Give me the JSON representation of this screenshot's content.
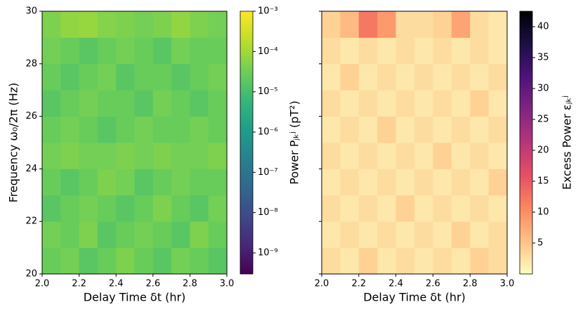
{
  "chart_data": [
    {
      "type": "heatmap",
      "xlabel": "Delay Time δt (hr)",
      "ylabel": "Frequency ω₀/2π (Hz)",
      "colorbar_label": "Power Pⱼₖʲ (pT²)",
      "colormap": "viridis",
      "color_scale": "log",
      "xbins": [
        2.0,
        2.1,
        2.2,
        2.3,
        2.4,
        2.5,
        2.6,
        2.7,
        2.8,
        2.9,
        3.0
      ],
      "ybins": [
        20,
        21,
        22,
        23,
        24,
        25,
        26,
        27,
        28,
        29,
        30
      ],
      "values": [
        [
          3e-05,
          4e-05,
          2e-05,
          3e-05,
          5e-05,
          3e-05,
          2e-05,
          4e-05,
          3e-05,
          2e-05
        ],
        [
          4e-05,
          3e-05,
          5e-05,
          2e-05,
          3e-05,
          4e-05,
          3e-05,
          2e-05,
          5e-05,
          3e-05
        ],
        [
          2e-05,
          3e-05,
          4e-05,
          3e-05,
          2e-05,
          3e-05,
          5e-05,
          3e-05,
          2e-05,
          4e-05
        ],
        [
          3e-05,
          2e-05,
          3e-05,
          5e-05,
          4e-05,
          2e-05,
          3e-05,
          4e-05,
          3e-05,
          3e-05
        ],
        [
          4e-05,
          5e-05,
          4e-05,
          4e-05,
          5e-05,
          4e-05,
          5e-05,
          4e-05,
          4e-05,
          5e-05
        ],
        [
          3e-05,
          4e-05,
          3e-05,
          2e-05,
          3e-05,
          4e-05,
          3e-05,
          3e-05,
          4e-05,
          3e-05
        ],
        [
          2e-05,
          3e-05,
          4e-05,
          3e-05,
          3e-05,
          2e-05,
          4e-05,
          3e-05,
          2e-05,
          3e-05
        ],
        [
          3e-05,
          2e-05,
          3e-05,
          4e-05,
          2e-05,
          3e-05,
          3e-05,
          2e-05,
          3e-05,
          4e-05
        ],
        [
          4e-05,
          3e-05,
          2e-05,
          3e-05,
          4e-05,
          3e-05,
          2e-05,
          4e-05,
          3e-05,
          3e-05
        ],
        [
          5e-05,
          8e-05,
          9e-05,
          6e-05,
          5e-05,
          4e-05,
          5e-05,
          8e-05,
          5e-05,
          4e-05
        ]
      ],
      "xlim": [
        2.0,
        3.0
      ],
      "xticks": [
        {
          "value": 2.0,
          "label": "2.0"
        },
        2.2,
        2.4,
        2.6,
        2.8,
        {
          "value": 3.0,
          "label": "3.0"
        }
      ],
      "ylim": [
        20,
        30
      ],
      "yticks": [
        20,
        22,
        24,
        26,
        28,
        30
      ],
      "yticklabels": true,
      "clim": [
        3e-10,
        0.001
      ],
      "cticks": [
        {
          "value": 1e-09,
          "label": "10⁻⁹"
        },
        {
          "value": 1e-08,
          "label": "10⁻⁸"
        },
        {
          "value": 1e-07,
          "label": "10⁻⁷"
        },
        {
          "value": 1e-06,
          "label": "10⁻⁶"
        },
        {
          "value": 1e-05,
          "label": "10⁻⁵"
        },
        {
          "value": 0.0001,
          "label": "10⁻⁴"
        },
        {
          "value": 0.001,
          "label": "10⁻³"
        }
      ]
    },
    {
      "type": "heatmap",
      "xlabel": "Delay Time δt (hr)",
      "colorbar_label": "Excess Power εⱼₖʲ",
      "colormap": "magma_r",
      "color_scale": "linear",
      "xbins": [
        2.0,
        2.1,
        2.2,
        2.3,
        2.4,
        2.5,
        2.6,
        2.7,
        2.8,
        2.9,
        3.0
      ],
      "ybins": [
        20,
        21,
        22,
        23,
        24,
        25,
        26,
        27,
        28,
        29,
        30
      ],
      "values": [
        [
          3,
          2,
          4,
          2,
          3,
          2,
          3,
          2,
          4,
          3
        ],
        [
          2,
          3,
          2,
          3,
          2,
          3,
          2,
          4,
          2,
          3
        ],
        [
          3,
          2,
          3,
          2,
          4,
          2,
          3,
          2,
          3,
          2
        ],
        [
          2,
          3,
          2,
          3,
          2,
          3,
          2,
          3,
          2,
          4
        ],
        [
          3,
          2,
          3,
          2,
          3,
          2,
          4,
          2,
          3,
          2
        ],
        [
          2,
          3,
          2,
          4,
          2,
          3,
          2,
          3,
          2,
          3
        ],
        [
          3,
          2,
          3,
          2,
          3,
          2,
          3,
          2,
          4,
          2
        ],
        [
          2,
          4,
          2,
          3,
          2,
          3,
          2,
          3,
          2,
          3
        ],
        [
          3,
          2,
          3,
          2,
          3,
          2,
          3,
          2,
          3,
          2
        ],
        [
          4,
          6,
          12,
          9,
          3,
          3,
          4,
          8,
          3,
          2
        ]
      ],
      "xlim": [
        2.0,
        3.0
      ],
      "xticks": [
        {
          "value": 2.0,
          "label": "2.0"
        },
        2.2,
        2.4,
        2.6,
        2.8,
        {
          "value": 3.0,
          "label": "3.0"
        }
      ],
      "ylim": [
        20,
        30
      ],
      "yticks": [
        20,
        22,
        24,
        26,
        28,
        30
      ],
      "yticklabels": false,
      "clim": [
        0,
        42.5
      ],
      "cticks": [
        5,
        10,
        15,
        20,
        25,
        30,
        35,
        40
      ]
    }
  ]
}
